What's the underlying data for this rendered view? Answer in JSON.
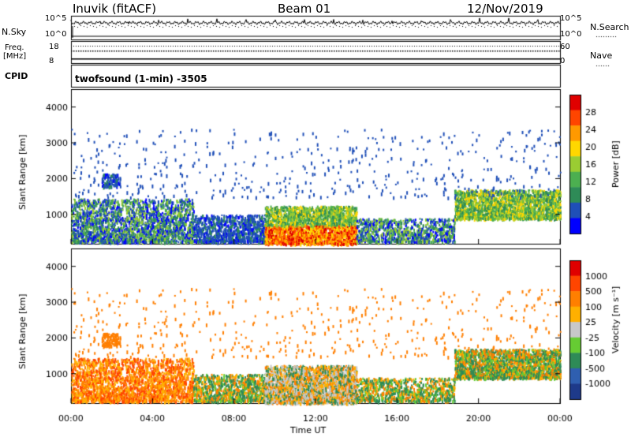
{
  "header": {
    "radar_title": "Inuvik (fitACF)",
    "beam": "Beam 01",
    "date": "12/Nov/2019"
  },
  "status_panels": {
    "nsky_label": "N.Sky",
    "nsky_ticks": [
      "10^5",
      "10^0"
    ],
    "nsearch_label": "N.Search",
    "nsearch_ticks": [
      "10^5",
      "10^0"
    ],
    "freq_label": "Freq.",
    "freq_unit": "[MHz]",
    "freq_ticks": [
      "18",
      "8"
    ],
    "nave_label": "Nave",
    "nave_ticks": [
      "60",
      "0"
    ],
    "cpid_label": "CPID",
    "cpid_text": "twofsound (1-min) -3505"
  },
  "chart_data": [
    {
      "type": "heatmap",
      "name": "power-panel",
      "ylabel": "Slant Range [km]",
      "yticks": [
        "4000",
        "3000",
        "2000",
        "1000"
      ],
      "ylim": [
        180,
        4500
      ],
      "xlim": [
        0,
        24
      ],
      "colorbar": {
        "label": "Power [dB]",
        "ticks": [
          "28",
          "24",
          "20",
          "16",
          "12",
          "8",
          "4"
        ],
        "colors": [
          "#0000ff",
          "#1f4fb8",
          "#2e8b57",
          "#4caf50",
          "#9acd32",
          "#ffd700",
          "#ff9900",
          "#ff4500",
          "#e00000"
        ]
      },
      "echo_regions": [
        {
          "t0": 0.0,
          "t1": 6.0,
          "r0": 250,
          "r1": 1500,
          "level": "mid"
        },
        {
          "t0": 9.5,
          "t1": 13.8,
          "r0": 200,
          "r1": 1250,
          "level": "high"
        },
        {
          "t0": 18.8,
          "t1": 24.0,
          "r0": 900,
          "r1": 1700,
          "level": "high"
        },
        {
          "t0": 1.5,
          "t1": 2.4,
          "r0": 1800,
          "r1": 2150,
          "level": "low"
        }
      ]
    },
    {
      "type": "heatmap",
      "name": "velocity-panel",
      "ylabel": "Slant Range [km]",
      "yticks": [
        "4000",
        "3000",
        "2000",
        "1000"
      ],
      "ylim": [
        180,
        4500
      ],
      "xlim": [
        0,
        24
      ],
      "xticks": [
        "00:00",
        "04:00",
        "08:00",
        "12:00",
        "16:00",
        "20:00",
        "00:00"
      ],
      "xlabel": "Time UT",
      "colorbar": {
        "label": "Velocity [m s⁻¹]",
        "ticks": [
          "1000",
          "500",
          "100",
          "25",
          "-25",
          "-100",
          "-500",
          "-1000"
        ],
        "colors": [
          "#1e3a8a",
          "#2f5fb0",
          "#2e8b57",
          "#66cc33",
          "#c8c8c8",
          "#ffb000",
          "#ff7f00",
          "#ff4500",
          "#e00000"
        ]
      }
    }
  ]
}
